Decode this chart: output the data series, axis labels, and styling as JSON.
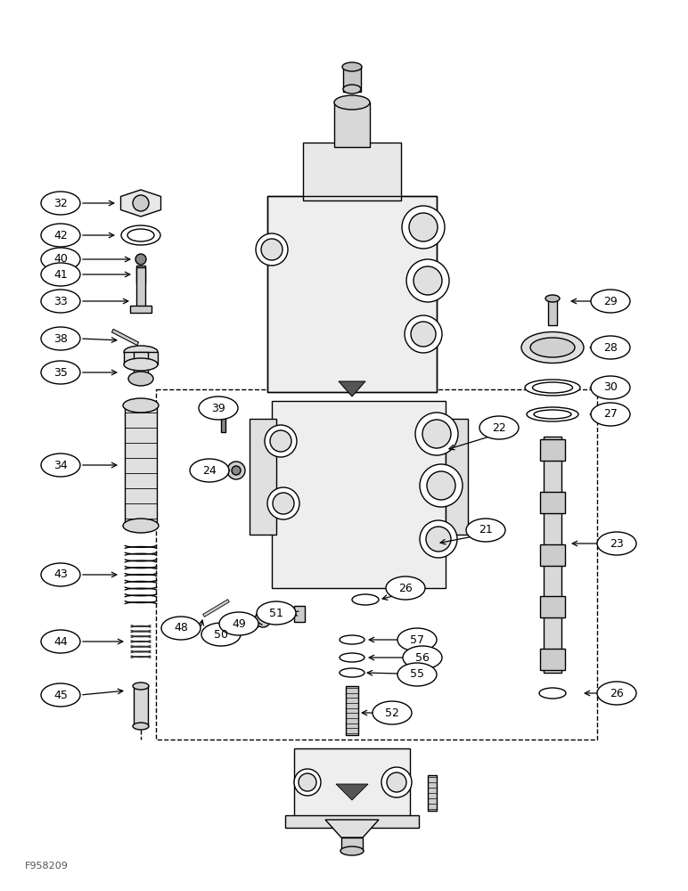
{
  "bg_color": "#ffffff",
  "line_color": "#000000",
  "fig_width": 7.72,
  "fig_height": 10.0,
  "dpi": 100,
  "footnote": "F958209",
  "lw": 1.0
}
